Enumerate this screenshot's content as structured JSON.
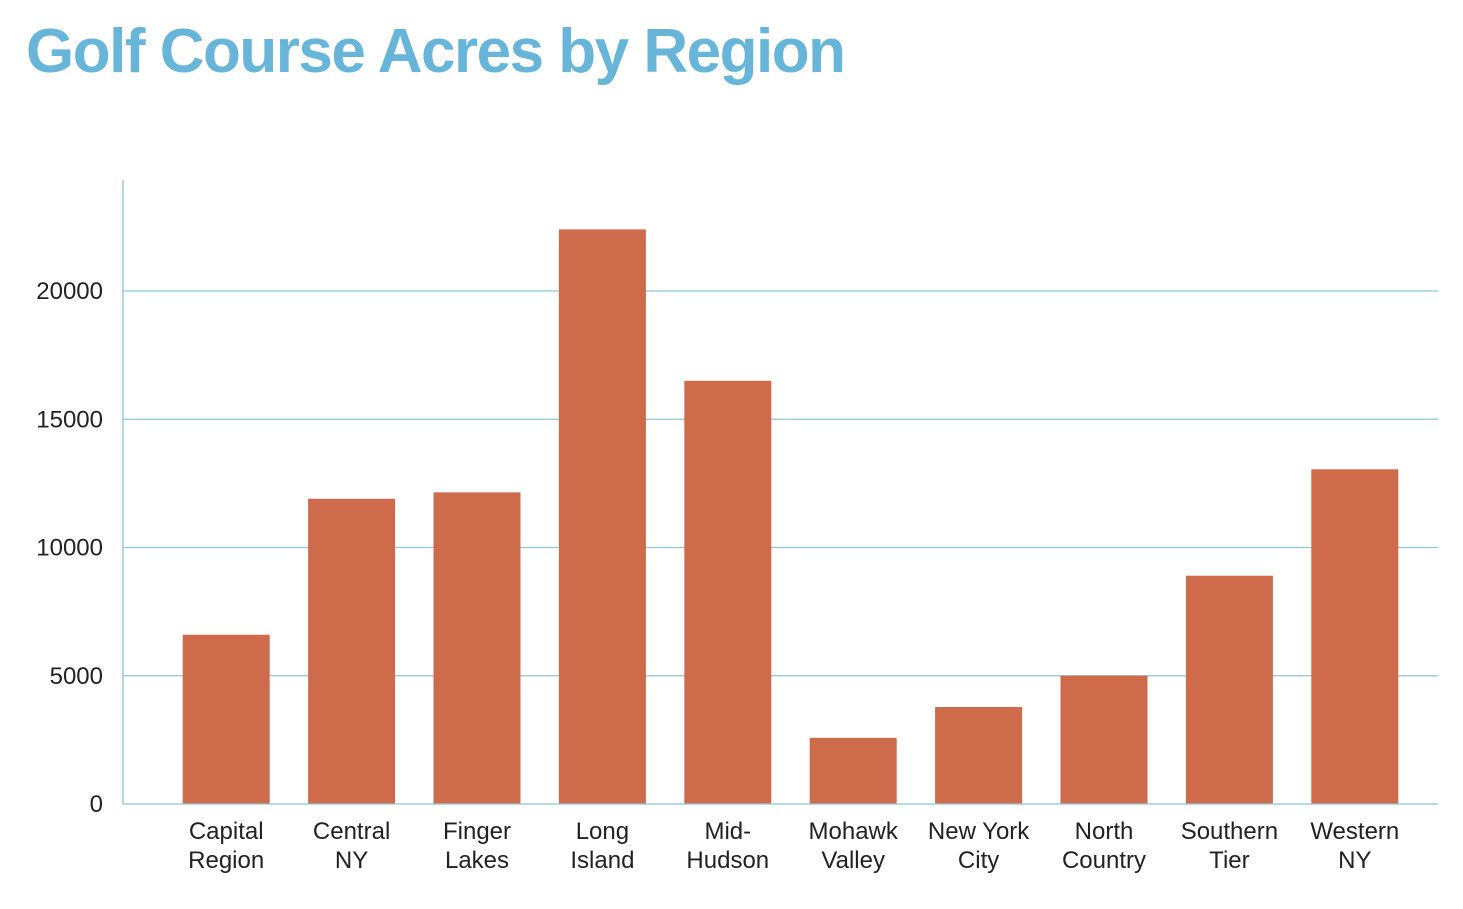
{
  "chart_data": {
    "type": "bar",
    "title": "Golf Course Acres by Region",
    "xlabel": "",
    "ylabel": "",
    "ylim": [
      0,
      24500
    ],
    "yticks": [
      0,
      5000,
      10000,
      15000,
      20000
    ],
    "grid": true,
    "legend": "none",
    "categories": [
      [
        "Capital",
        "Region"
      ],
      [
        "Central",
        "NY"
      ],
      [
        "Finger",
        "Lakes"
      ],
      [
        "Long",
        "Island"
      ],
      [
        "Mid-",
        "Hudson"
      ],
      [
        "Mohawk",
        "Valley"
      ],
      [
        "New York",
        "City"
      ],
      [
        "North",
        "Country"
      ],
      [
        "Southern",
        "Tier"
      ],
      [
        "Western",
        "NY"
      ]
    ],
    "values": [
      6600,
      11900,
      12150,
      22400,
      16500,
      2580,
      3780,
      5000,
      8900,
      13050
    ],
    "colors": {
      "title": "#67b6d9",
      "bar": "#cd6b4a",
      "grid": "#8ec7d6",
      "axis": "#8ec7d6",
      "text": "#222222"
    }
  }
}
